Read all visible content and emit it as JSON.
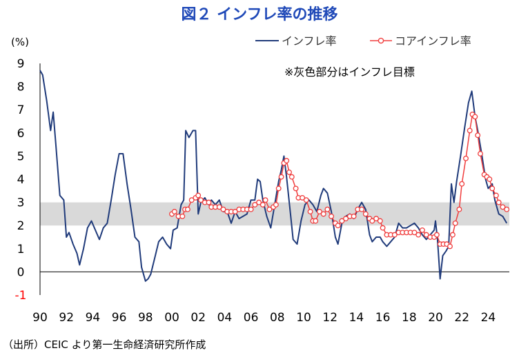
{
  "chart_data": {
    "type": "line",
    "title": "図２ インフレ率の推移",
    "unit_label": "(%)",
    "ylim": [
      -1,
      9
    ],
    "yticks": [
      "9",
      "8",
      "7",
      "6",
      "5",
      "4",
      "3",
      "2",
      "1",
      "0",
      "-1"
    ],
    "xlim": [
      1990,
      2025.6
    ],
    "xtick_labels": [
      "90",
      "92",
      "94",
      "96",
      "98",
      "00",
      "02",
      "04",
      "06",
      "08",
      "10",
      "12",
      "14",
      "16",
      "18",
      "20",
      "22",
      "24"
    ],
    "xtick_years": [
      1990,
      1992,
      1994,
      1996,
      1998,
      2000,
      2002,
      2004,
      2006,
      2008,
      2010,
      2012,
      2014,
      2016,
      2018,
      2020,
      2022,
      2024
    ],
    "target_band": {
      "low": 2,
      "high": 3
    },
    "annotation": "※灰色部分はインフレ目標",
    "source": "（出所）CEIC より第一生命経済研究所作成",
    "legend": {
      "placement": "top-right"
    },
    "series": [
      {
        "name": "インフレ率",
        "color": "#1f3a7a",
        "points": [
          [
            1990.0,
            8.7
          ],
          [
            1990.2,
            8.5
          ],
          [
            1990.5,
            7.4
          ],
          [
            1990.8,
            6.1
          ],
          [
            1991.0,
            6.9
          ],
          [
            1991.2,
            5.5
          ],
          [
            1991.5,
            3.3
          ],
          [
            1991.8,
            3.1
          ],
          [
            1992.0,
            1.5
          ],
          [
            1992.2,
            1.7
          ],
          [
            1992.5,
            1.2
          ],
          [
            1992.8,
            0.8
          ],
          [
            1993.0,
            0.3
          ],
          [
            1993.3,
            1.0
          ],
          [
            1993.6,
            1.9
          ],
          [
            1993.9,
            2.2
          ],
          [
            1994.2,
            1.8
          ],
          [
            1994.5,
            1.4
          ],
          [
            1994.8,
            1.9
          ],
          [
            1995.1,
            2.1
          ],
          [
            1995.4,
            3.1
          ],
          [
            1995.7,
            4.2
          ],
          [
            1996.0,
            5.1
          ],
          [
            1996.3,
            5.1
          ],
          [
            1996.6,
            3.8
          ],
          [
            1996.9,
            2.7
          ],
          [
            1997.2,
            1.5
          ],
          [
            1997.5,
            1.3
          ],
          [
            1997.7,
            0.2
          ],
          [
            1998.0,
            -0.4
          ],
          [
            1998.2,
            -0.3
          ],
          [
            1998.4,
            -0.1
          ],
          [
            1998.7,
            0.6
          ],
          [
            1999.0,
            1.3
          ],
          [
            1999.3,
            1.5
          ],
          [
            1999.6,
            1.2
          ],
          [
            1999.9,
            1.0
          ],
          [
            2000.1,
            1.8
          ],
          [
            2000.4,
            1.9
          ],
          [
            2000.7,
            2.9
          ],
          [
            2000.9,
            3.1
          ],
          [
            2001.05,
            6.1
          ],
          [
            2001.3,
            5.8
          ],
          [
            2001.6,
            6.1
          ],
          [
            2001.8,
            6.1
          ],
          [
            2002.0,
            2.5
          ],
          [
            2002.2,
            3.0
          ],
          [
            2002.5,
            3.2
          ],
          [
            2002.8,
            2.9
          ],
          [
            2003.0,
            3.1
          ],
          [
            2003.3,
            2.9
          ],
          [
            2003.6,
            3.1
          ],
          [
            2003.9,
            2.6
          ],
          [
            2004.2,
            2.6
          ],
          [
            2004.5,
            2.1
          ],
          [
            2004.8,
            2.6
          ],
          [
            2005.1,
            2.3
          ],
          [
            2005.4,
            2.4
          ],
          [
            2005.7,
            2.5
          ],
          [
            2006.0,
            3.1
          ],
          [
            2006.3,
            3.1
          ],
          [
            2006.5,
            4.0
          ],
          [
            2006.7,
            3.9
          ],
          [
            2006.9,
            3.1
          ],
          [
            2007.2,
            2.4
          ],
          [
            2007.5,
            1.9
          ],
          [
            2007.8,
            2.9
          ],
          [
            2008.1,
            3.9
          ],
          [
            2008.3,
            4.4
          ],
          [
            2008.5,
            5.0
          ],
          [
            2008.7,
            4.1
          ],
          [
            2009.0,
            2.5
          ],
          [
            2009.2,
            1.4
          ],
          [
            2009.5,
            1.2
          ],
          [
            2009.8,
            2.2
          ],
          [
            2010.1,
            2.9
          ],
          [
            2010.4,
            3.1
          ],
          [
            2010.7,
            2.9
          ],
          [
            2011.0,
            2.6
          ],
          [
            2011.3,
            3.3
          ],
          [
            2011.5,
            3.6
          ],
          [
            2011.8,
            3.4
          ],
          [
            2012.1,
            2.6
          ],
          [
            2012.4,
            1.5
          ],
          [
            2012.6,
            1.2
          ],
          [
            2012.9,
            2.1
          ],
          [
            2013.2,
            2.4
          ],
          [
            2013.5,
            2.5
          ],
          [
            2013.8,
            2.3
          ],
          [
            2014.1,
            2.7
          ],
          [
            2014.4,
            3.0
          ],
          [
            2014.7,
            2.7
          ],
          [
            2015.0,
            1.6
          ],
          [
            2015.2,
            1.3
          ],
          [
            2015.5,
            1.5
          ],
          [
            2015.8,
            1.5
          ],
          [
            2016.0,
            1.3
          ],
          [
            2016.3,
            1.1
          ],
          [
            2016.6,
            1.3
          ],
          [
            2016.9,
            1.5
          ],
          [
            2017.2,
            2.1
          ],
          [
            2017.5,
            1.9
          ],
          [
            2017.8,
            1.9
          ],
          [
            2018.1,
            2.0
          ],
          [
            2018.4,
            2.1
          ],
          [
            2018.7,
            1.9
          ],
          [
            2019.0,
            1.6
          ],
          [
            2019.3,
            1.4
          ],
          [
            2019.6,
            1.6
          ],
          [
            2019.9,
            1.8
          ],
          [
            2020.0,
            2.2
          ],
          [
            2020.15,
            1.4
          ],
          [
            2020.35,
            -0.3
          ],
          [
            2020.55,
            0.7
          ],
          [
            2020.8,
            0.9
          ],
          [
            2021.0,
            1.1
          ],
          [
            2021.2,
            3.8
          ],
          [
            2021.4,
            3.0
          ],
          [
            2021.6,
            3.9
          ],
          [
            2021.9,
            5.0
          ],
          [
            2022.2,
            6.2
          ],
          [
            2022.5,
            7.3
          ],
          [
            2022.75,
            7.8
          ],
          [
            2023.0,
            6.7
          ],
          [
            2023.2,
            6.1
          ],
          [
            2023.5,
            5.1
          ],
          [
            2023.8,
            4.0
          ],
          [
            2024.0,
            3.6
          ],
          [
            2024.3,
            3.8
          ],
          [
            2024.5,
            3.1
          ],
          [
            2024.8,
            2.5
          ],
          [
            2025.1,
            2.4
          ],
          [
            2025.4,
            2.1
          ]
        ]
      },
      {
        "name": "コアインフレ率",
        "color": "#f03c3c",
        "points": [
          [
            2000.0,
            2.5
          ],
          [
            2000.2,
            2.6
          ],
          [
            2000.5,
            2.4
          ],
          [
            2000.8,
            2.4
          ],
          [
            2001.0,
            2.7
          ],
          [
            2001.2,
            2.7
          ],
          [
            2001.5,
            3.1
          ],
          [
            2001.8,
            3.2
          ],
          [
            2002.0,
            3.3
          ],
          [
            2002.2,
            3.1
          ],
          [
            2002.5,
            3.0
          ],
          [
            2002.8,
            3.0
          ],
          [
            2003.0,
            2.8
          ],
          [
            2003.3,
            2.8
          ],
          [
            2003.6,
            2.8
          ],
          [
            2003.9,
            2.7
          ],
          [
            2004.2,
            2.6
          ],
          [
            2004.5,
            2.6
          ],
          [
            2004.8,
            2.6
          ],
          [
            2005.1,
            2.7
          ],
          [
            2005.4,
            2.7
          ],
          [
            2005.7,
            2.7
          ],
          [
            2006.0,
            2.7
          ],
          [
            2006.3,
            2.9
          ],
          [
            2006.6,
            3.0
          ],
          [
            2006.9,
            2.9
          ],
          [
            2007.1,
            3.1
          ],
          [
            2007.4,
            2.7
          ],
          [
            2007.7,
            2.8
          ],
          [
            2007.9,
            2.9
          ],
          [
            2008.1,
            3.6
          ],
          [
            2008.3,
            4.1
          ],
          [
            2008.5,
            4.7
          ],
          [
            2008.7,
            4.8
          ],
          [
            2008.9,
            4.3
          ],
          [
            2009.1,
            4.1
          ],
          [
            2009.4,
            3.6
          ],
          [
            2009.6,
            3.2
          ],
          [
            2009.9,
            3.2
          ],
          [
            2010.2,
            3.1
          ],
          [
            2010.5,
            2.6
          ],
          [
            2010.7,
            2.2
          ],
          [
            2010.9,
            2.2
          ],
          [
            2011.2,
            2.6
          ],
          [
            2011.5,
            2.5
          ],
          [
            2011.8,
            2.7
          ],
          [
            2012.1,
            2.4
          ],
          [
            2012.4,
            2.1
          ],
          [
            2012.6,
            2.0
          ],
          [
            2012.9,
            2.2
          ],
          [
            2013.2,
            2.3
          ],
          [
            2013.5,
            2.4
          ],
          [
            2013.8,
            2.4
          ],
          [
            2014.1,
            2.7
          ],
          [
            2014.4,
            2.7
          ],
          [
            2014.7,
            2.5
          ],
          [
            2015.0,
            2.3
          ],
          [
            2015.2,
            2.2
          ],
          [
            2015.5,
            2.3
          ],
          [
            2015.8,
            2.2
          ],
          [
            2016.0,
            1.9
          ],
          [
            2016.3,
            1.6
          ],
          [
            2016.6,
            1.6
          ],
          [
            2016.9,
            1.6
          ],
          [
            2017.2,
            1.7
          ],
          [
            2017.5,
            1.7
          ],
          [
            2017.8,
            1.7
          ],
          [
            2018.1,
            1.7
          ],
          [
            2018.4,
            1.7
          ],
          [
            2018.7,
            1.6
          ],
          [
            2019.0,
            1.8
          ],
          [
            2019.3,
            1.6
          ],
          [
            2019.6,
            1.5
          ],
          [
            2019.9,
            1.5
          ],
          [
            2020.1,
            1.6
          ],
          [
            2020.35,
            1.2
          ],
          [
            2020.6,
            1.2
          ],
          [
            2020.85,
            1.2
          ],
          [
            2021.1,
            1.1
          ],
          [
            2021.3,
            1.6
          ],
          [
            2021.5,
            2.1
          ],
          [
            2021.8,
            2.7
          ],
          [
            2022.0,
            3.8
          ],
          [
            2022.3,
            4.9
          ],
          [
            2022.6,
            6.1
          ],
          [
            2022.8,
            6.8
          ],
          [
            2023.0,
            6.7
          ],
          [
            2023.2,
            5.9
          ],
          [
            2023.4,
            5.1
          ],
          [
            2023.7,
            4.2
          ],
          [
            2023.9,
            4.1
          ],
          [
            2024.1,
            4.0
          ],
          [
            2024.3,
            3.6
          ],
          [
            2024.6,
            3.3
          ],
          [
            2024.8,
            3.0
          ],
          [
            2025.1,
            2.8
          ],
          [
            2025.4,
            2.7
          ]
        ]
      }
    ]
  }
}
